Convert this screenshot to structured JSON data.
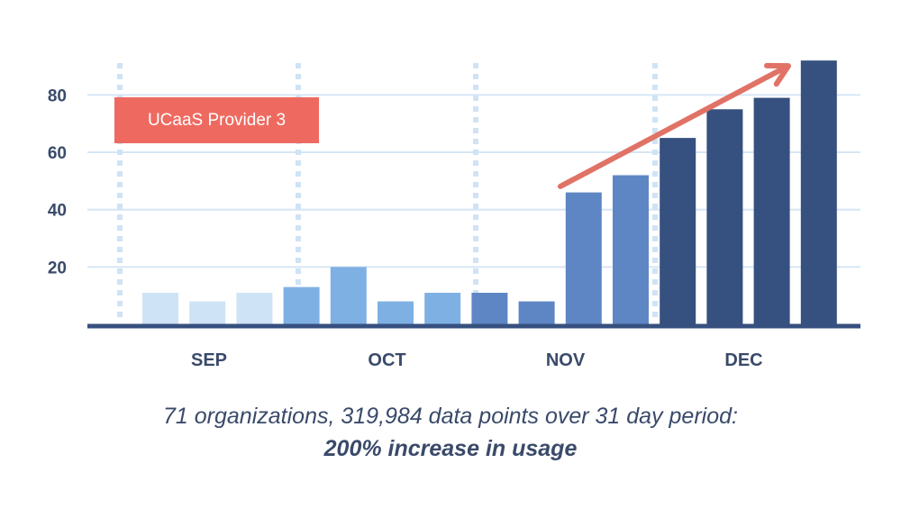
{
  "chart_data": {
    "type": "bar",
    "title": "",
    "xlabel": "",
    "ylabel": "",
    "ylim": [
      0,
      93
    ],
    "yticks": [
      20,
      40,
      60,
      80
    ],
    "months": [
      "SEP",
      "OCT",
      "NOV",
      "DEC"
    ],
    "values": [
      11,
      8,
      11,
      13,
      20,
      8,
      11,
      11,
      8,
      46,
      52,
      65,
      75,
      79,
      92
    ],
    "colors": [
      "#cfe3f6",
      "#cfe3f6",
      "#cfe3f6",
      "#7fb0e3",
      "#7fb0e3",
      "#7fb0e3",
      "#7fb0e3",
      "#5f86c4",
      "#5f86c4",
      "#5f86c4",
      "#5f86c4",
      "#36507f",
      "#36507f",
      "#36507f",
      "#36507f"
    ],
    "grid": true,
    "trend_arrow": {
      "from_value": 50,
      "to_value": 92,
      "color": "#e07266"
    }
  },
  "legend": {
    "label": "UCaaS Provider 3",
    "color": "#ee6a60"
  },
  "caption": {
    "line1": "71 organizations, 319,984 data points over 31 day period:",
    "line2": "200% increase in usage"
  }
}
